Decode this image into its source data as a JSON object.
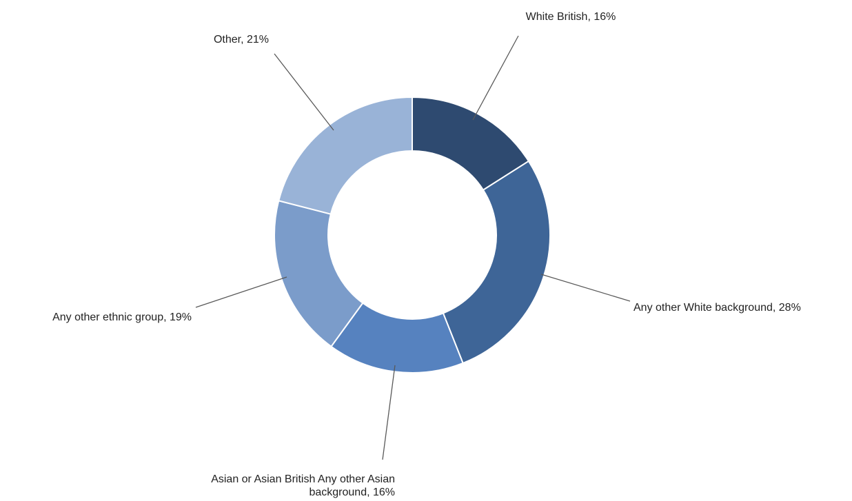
{
  "chart_data": {
    "type": "pie",
    "donut": true,
    "title": "",
    "slices": [
      {
        "label": "White British",
        "value": 16,
        "display": "White British, 16%",
        "color": "#2e4a70"
      },
      {
        "label": "Any other White background",
        "value": 28,
        "display": "Any other White background, 28%",
        "color": "#3e6597"
      },
      {
        "label": "Asian or Asian British Any other Asian background",
        "value": 16,
        "display": [
          "Asian or Asian British Any other Asian",
          "background, 16%"
        ],
        "color": "#5682bf"
      },
      {
        "label": "Any other ethnic group",
        "value": 19,
        "display": "Any other ethnic group, 19%",
        "color": "#7b9cca"
      },
      {
        "label": "Other",
        "value": 21,
        "display": "Other, 21%",
        "color": "#99b3d7"
      }
    ]
  }
}
